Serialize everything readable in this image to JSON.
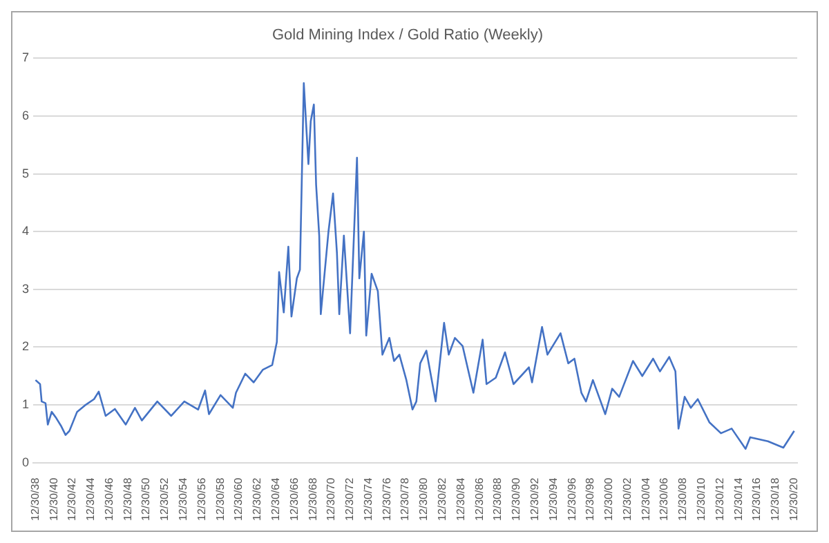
{
  "chart_data": {
    "type": "line",
    "title": "Gold Mining Index / Gold Ratio (Weekly)",
    "color": "#4472c4",
    "x": [
      "1939-01",
      "1939-07",
      "1939-09",
      "1940-02",
      "1940-05",
      "1940-10",
      "1941-04",
      "1941-10",
      "1942-04",
      "1942-09",
      "1943-07",
      "1944-05",
      "1945-05",
      "1945-11",
      "1946-08",
      "1947-08",
      "1948-10",
      "1949-10",
      "1950-07",
      "1952-03",
      "1953-09",
      "1955-02",
      "1956-08",
      "1957-05",
      "1957-10",
      "1959-01",
      "1960-05",
      "1960-09",
      "1961-09",
      "1962-08",
      "1963-08",
      "1964-08",
      "1965-02",
      "1965-05",
      "1965-11",
      "1966-05",
      "1966-09",
      "1967-04",
      "1967-08",
      "1968-01",
      "1968-07",
      "1968-10",
      "1969-02",
      "1969-05",
      "1969-09",
      "1969-11",
      "1970-09",
      "1971-03",
      "1971-08",
      "1971-11",
      "1972-05",
      "1973-01",
      "1973-10",
      "1974-01",
      "1974-07",
      "1974-10",
      "1975-05",
      "1976-01",
      "1976-07",
      "1977-04",
      "1977-10",
      "1978-05",
      "1979-02",
      "1979-10",
      "1980-03",
      "1980-08",
      "1981-04",
      "1982-04",
      "1983-03",
      "1983-09",
      "1984-05",
      "1985-03",
      "1986-05",
      "1987-05",
      "1987-10",
      "1988-10",
      "1989-10",
      "1990-09",
      "1992-05",
      "1992-09",
      "1993-10",
      "1994-05",
      "1995-10",
      "1996-08",
      "1997-04",
      "1998-01",
      "1998-07",
      "1999-04",
      "2000-08",
      "2001-05",
      "2002-02",
      "2003-08",
      "2004-08",
      "2005-10",
      "2006-07",
      "2007-07",
      "2008-03",
      "2008-07",
      "2009-03",
      "2009-11",
      "2010-08",
      "2011-11",
      "2013-02",
      "2014-04",
      "2015-10",
      "2016-04",
      "2018-03",
      "2019-11",
      "2021-01"
    ],
    "values": [
      1.43,
      1.36,
      1.06,
      1.03,
      0.66,
      0.88,
      0.77,
      0.64,
      0.48,
      0.55,
      0.88,
      0.99,
      1.1,
      1.23,
      0.81,
      0.93,
      0.66,
      0.95,
      0.73,
      1.06,
      0.81,
      1.06,
      0.92,
      1.25,
      0.84,
      1.17,
      0.95,
      1.21,
      1.54,
      1.39,
      1.61,
      1.69,
      2.09,
      3.3,
      2.6,
      3.74,
      2.53,
      3.19,
      3.34,
      6.57,
      5.17,
      5.91,
      6.2,
      4.81,
      3.93,
      2.57,
      4.0,
      4.66,
      3.63,
      2.57,
      3.93,
      2.24,
      5.28,
      3.19,
      4.0,
      2.2,
      3.27,
      2.97,
      1.87,
      2.16,
      1.76,
      1.87,
      1.43,
      0.92,
      1.06,
      1.72,
      1.94,
      1.06,
      2.42,
      1.87,
      2.16,
      2.02,
      1.21,
      2.13,
      1.36,
      1.47,
      1.91,
      1.36,
      1.65,
      1.39,
      2.35,
      1.87,
      2.24,
      1.72,
      1.8,
      1.21,
      1.06,
      1.43,
      0.84,
      1.28,
      1.14,
      1.76,
      1.5,
      1.8,
      1.58,
      1.83,
      1.58,
      0.59,
      1.14,
      0.95,
      1.1,
      0.7,
      0.51,
      0.59,
      0.24,
      0.44,
      0.37,
      0.26,
      0.55
    ],
    "xlim": [
      "1938-10-01",
      "2021-05-01"
    ],
    "xticks": [
      {
        "value": "1938-12-30",
        "label": "12/30/38"
      },
      {
        "value": "1940-12-30",
        "label": "12/30/40"
      },
      {
        "value": "1942-12-30",
        "label": "12/30/42"
      },
      {
        "value": "1944-12-30",
        "label": "12/30/44"
      },
      {
        "value": "1946-12-30",
        "label": "12/30/46"
      },
      {
        "value": "1948-12-30",
        "label": "12/30/48"
      },
      {
        "value": "1950-12-30",
        "label": "12/30/50"
      },
      {
        "value": "1952-12-30",
        "label": "12/30/52"
      },
      {
        "value": "1954-12-30",
        "label": "12/30/54"
      },
      {
        "value": "1956-12-30",
        "label": "12/30/56"
      },
      {
        "value": "1958-12-30",
        "label": "12/30/58"
      },
      {
        "value": "1960-12-30",
        "label": "12/30/60"
      },
      {
        "value": "1962-12-30",
        "label": "12/30/62"
      },
      {
        "value": "1964-12-30",
        "label": "12/30/64"
      },
      {
        "value": "1966-12-30",
        "label": "12/30/66"
      },
      {
        "value": "1968-12-30",
        "label": "12/30/68"
      },
      {
        "value": "1970-12-30",
        "label": "12/30/70"
      },
      {
        "value": "1972-12-30",
        "label": "12/30/72"
      },
      {
        "value": "1974-12-30",
        "label": "12/30/74"
      },
      {
        "value": "1976-12-30",
        "label": "12/30/76"
      },
      {
        "value": "1978-12-30",
        "label": "12/30/78"
      },
      {
        "value": "1980-12-30",
        "label": "12/30/80"
      },
      {
        "value": "1982-12-30",
        "label": "12/30/82"
      },
      {
        "value": "1984-12-30",
        "label": "12/30/84"
      },
      {
        "value": "1986-12-30",
        "label": "12/30/86"
      },
      {
        "value": "1988-12-30",
        "label": "12/30/88"
      },
      {
        "value": "1990-12-30",
        "label": "12/30/90"
      },
      {
        "value": "1992-12-30",
        "label": "12/30/92"
      },
      {
        "value": "1994-12-30",
        "label": "12/30/94"
      },
      {
        "value": "1996-12-30",
        "label": "12/30/96"
      },
      {
        "value": "1998-12-30",
        "label": "12/30/98"
      },
      {
        "value": "2000-12-30",
        "label": "12/30/00"
      },
      {
        "value": "2002-12-30",
        "label": "12/30/02"
      },
      {
        "value": "2004-12-30",
        "label": "12/30/04"
      },
      {
        "value": "2006-12-30",
        "label": "12/30/06"
      },
      {
        "value": "2008-12-30",
        "label": "12/30/08"
      },
      {
        "value": "2010-12-30",
        "label": "12/30/10"
      },
      {
        "value": "2012-12-30",
        "label": "12/30/12"
      },
      {
        "value": "2014-12-30",
        "label": "12/30/14"
      },
      {
        "value": "2016-12-30",
        "label": "12/30/16"
      },
      {
        "value": "2018-12-30",
        "label": "12/30/18"
      },
      {
        "value": "2020-12-30",
        "label": "12/30/20"
      }
    ],
    "ylim": [
      0,
      7
    ],
    "yticks": [
      0,
      1,
      2,
      3,
      4,
      5,
      6,
      7
    ],
    "grid": "y",
    "marker": "none",
    "line_style": "solid",
    "legend": false
  }
}
